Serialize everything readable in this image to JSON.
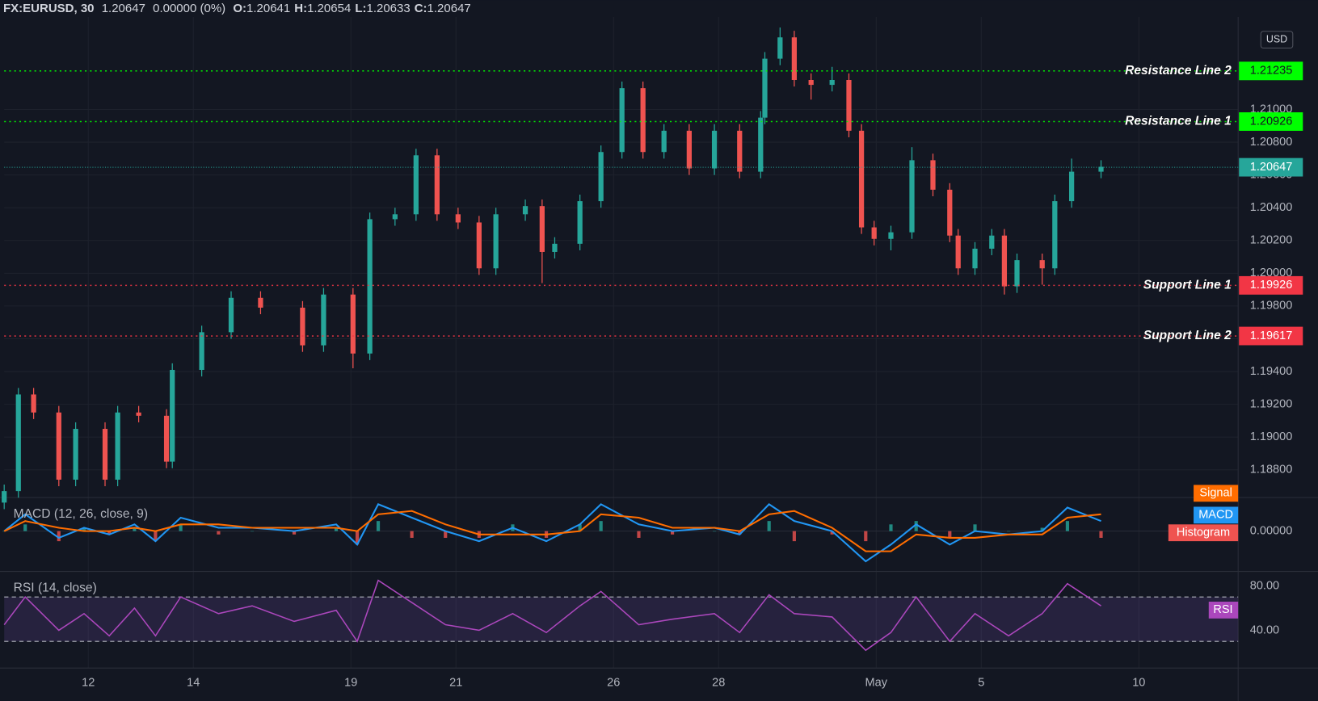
{
  "header": {
    "symbol": "FX:EURUSD, 30",
    "last": "1.20647",
    "change": "0.00000 (0%)",
    "ohlc": [
      {
        "label": "O:",
        "value": "1.20641"
      },
      {
        "label": "H:",
        "value": "1.20654"
      },
      {
        "label": "L:",
        "value": "1.20633"
      },
      {
        "label": "C:",
        "value": "1.20647"
      }
    ]
  },
  "chart_data": [
    {
      "type": "candlestick",
      "currency": "USD",
      "up_color": "#26a69a",
      "down_color": "#ef5350",
      "grid": true,
      "x": [
        -1.6,
        -1.33,
        -1.04,
        -0.56,
        -0.24,
        0.32,
        0.56,
        0.96,
        1.49,
        1.6,
        2.16,
        2.72,
        3.28,
        4.08,
        4.48,
        5.04,
        5.36,
        5.84,
        6.24,
        6.64,
        7.04,
        7.44,
        7.76,
        8.32,
        8.64,
        8.88,
        9.36,
        9.76,
        10.16,
        10.56,
        10.96,
        11.44,
        11.92,
        12.4,
        12.8,
        12.88,
        13.17,
        13.44,
        13.76,
        14.16,
        14.48,
        14.72,
        14.96,
        15.28,
        15.68,
        16.08,
        16.4,
        16.56,
        16.88,
        17.2,
        17.44,
        17.68,
        18.16,
        18.4,
        18.72,
        19.28
      ],
      "open": [
        1.186,
        1.1867,
        1.1926,
        1.1915,
        1.1874,
        1.1905,
        1.1874,
        1.1915,
        1.1913,
        1.1885,
        1.1941,
        1.1964,
        1.1985,
        1.1979,
        1.1956,
        1.1987,
        1.1951,
        1.2033,
        1.2036,
        1.2072,
        1.2036,
        1.2031,
        1.2003,
        1.2036,
        1.2041,
        1.2013,
        1.2018,
        1.2044,
        1.2074,
        1.2113,
        1.2074,
        1.2087,
        1.2064,
        1.2087,
        1.2062,
        1.2095,
        1.2131,
        1.2144,
        1.2118,
        1.2115,
        1.2118,
        1.2087,
        1.2028,
        1.2021,
        1.2025,
        1.2069,
        1.2051,
        1.2023,
        1.2003,
        1.2015,
        1.2023,
        1.1992,
        1.2008,
        1.2003,
        1.2044,
        1.2062
      ],
      "high": [
        1.1871,
        1.193,
        1.193,
        1.1919,
        1.1909,
        1.1909,
        1.1919,
        1.1919,
        1.1917,
        1.1945,
        1.1968,
        1.1989,
        1.1989,
        1.1983,
        1.1991,
        1.1991,
        1.2037,
        1.204,
        1.2076,
        1.2076,
        1.204,
        1.2035,
        1.204,
        1.2045,
        1.2045,
        1.2022,
        1.2048,
        1.2078,
        1.2117,
        1.2117,
        1.2091,
        1.2091,
        1.2091,
        1.2091,
        1.2099,
        1.2135,
        1.215,
        1.2148,
        1.2122,
        1.2126,
        1.2122,
        1.2091,
        1.2032,
        1.2029,
        1.2077,
        1.2073,
        1.2055,
        1.2027,
        1.2019,
        1.2027,
        1.2027,
        1.2012,
        1.2012,
        1.2048,
        1.207,
        1.2069
      ],
      "low": [
        1.1856,
        1.1863,
        1.1911,
        1.187,
        1.187,
        1.187,
        1.187,
        1.1909,
        1.1881,
        1.1881,
        1.1937,
        1.196,
        1.1975,
        1.1952,
        1.1952,
        1.1942,
        1.1947,
        1.2029,
        1.2032,
        1.2032,
        1.2027,
        1.1999,
        1.1999,
        1.2032,
        1.1994,
        1.2009,
        1.2014,
        1.204,
        1.207,
        1.207,
        1.207,
        1.206,
        1.206,
        1.2058,
        1.2058,
        1.2091,
        1.2127,
        1.2114,
        1.2106,
        1.2111,
        1.2083,
        1.2024,
        1.2017,
        1.2014,
        1.2021,
        1.2047,
        1.2019,
        1.1999,
        1.1999,
        1.2011,
        1.1987,
        1.1988,
        1.1993,
        1.1999,
        1.204,
        1.2058
      ],
      "close": [
        1.1867,
        1.1926,
        1.1915,
        1.1874,
        1.1905,
        1.1874,
        1.1915,
        1.1913,
        1.1885,
        1.1941,
        1.1964,
        1.1985,
        1.1979,
        1.1956,
        1.1987,
        1.1951,
        1.2033,
        1.2036,
        1.2072,
        1.2036,
        1.2031,
        1.2003,
        1.2036,
        1.2041,
        1.2013,
        1.2018,
        1.2044,
        1.2074,
        1.2113,
        1.2074,
        1.2087,
        1.2064,
        1.2087,
        1.2062,
        1.2095,
        1.2131,
        1.2144,
        1.2118,
        1.2115,
        1.2118,
        1.2087,
        1.2028,
        1.2021,
        1.2025,
        1.2069,
        1.2051,
        1.2023,
        1.2003,
        1.2015,
        1.2023,
        1.1992,
        1.2008,
        1.2003,
        1.2044,
        1.2062,
        1.2065
      ],
      "xlim": [
        -1.6,
        21.89
      ],
      "xticks": [
        {
          "value": 0,
          "label": "12"
        },
        {
          "value": 2,
          "label": "14"
        },
        {
          "value": 5,
          "label": "19"
        },
        {
          "value": 7,
          "label": "21"
        },
        {
          "value": 10,
          "label": "26"
        },
        {
          "value": 12,
          "label": "28"
        },
        {
          "value": 15,
          "label": "May"
        },
        {
          "value": 17,
          "label": "5"
        },
        {
          "value": 20,
          "label": "10"
        }
      ],
      "ylim": [
        1.18631,
        1.21513
      ],
      "yticks": [
        {
          "value": 1.188,
          "label": "1.18800"
        },
        {
          "value": 1.19,
          "label": "1.19000"
        },
        {
          "value": 1.192,
          "label": "1.19200"
        },
        {
          "value": 1.194,
          "label": "1.19400"
        },
        {
          "value": 1.196,
          "label": "1.19600"
        },
        {
          "value": 1.198,
          "label": "1.19800"
        },
        {
          "value": 1.2,
          "label": "1.20000"
        },
        {
          "value": 1.202,
          "label": "1.20200"
        },
        {
          "value": 1.204,
          "label": "1.20400"
        },
        {
          "value": 1.206,
          "label": "1.20600"
        },
        {
          "value": 1.208,
          "label": "1.20800"
        },
        {
          "value": 1.21,
          "label": "1.21000"
        }
      ],
      "levels": [
        {
          "name": "Resistance Line 2",
          "value": 1.21235,
          "color": "#00ff00"
        },
        {
          "name": "Resistance Line 1",
          "value": 1.20926,
          "color": "#00ff00"
        },
        {
          "name": "Support Line 1",
          "value": 1.19926,
          "color": "#f23645"
        },
        {
          "name": "Support Line 2",
          "value": 1.19617,
          "color": "#f23645"
        }
      ],
      "last_price": 1.20647,
      "last_color": "#26a69a"
    },
    {
      "type": "macd",
      "title": "MACD (12, 26, close, 9)",
      "x": [
        -1.6,
        -1.2,
        -0.56,
        -0.08,
        0.4,
        0.88,
        1.28,
        1.76,
        2.48,
        3.12,
        3.92,
        4.72,
        5.12,
        5.52,
        6.16,
        6.8,
        7.44,
        8.08,
        8.72,
        9.36,
        9.76,
        10.48,
        11.12,
        11.92,
        12.4,
        12.96,
        13.44,
        14.16,
        14.8,
        15.28,
        15.76,
        16.4,
        16.88,
        17.52,
        18.16,
        18.64,
        19.28
      ],
      "series": [
        {
          "name": "Histogram",
          "color": "#ef5350",
          "up_color": "#26a69a",
          "values": [
            0,
            0.0002,
            -0.0003,
            0.0001,
            -0.0001,
            0.0001,
            -0.0003,
            0.0002,
            -0.0001,
            0,
            -0.0001,
            0.0001,
            -0.0004,
            0.0003,
            -0.0002,
            -0.0002,
            -0.0002,
            0.0002,
            -0.0002,
            0.0002,
            0.0003,
            -0.0002,
            -0.0001,
            0,
            -0.0001,
            0.0003,
            -0.0003,
            -0.0001,
            -0.0003,
            0.0002,
            0.0003,
            -0.0002,
            0.0002,
            0,
            0.0001,
            0.0003,
            -0.0002
          ]
        },
        {
          "name": "MACD",
          "color": "#2196f3",
          "values": [
            0,
            0.0005,
            -0.0002,
            0.0001,
            -0.0001,
            0.0002,
            -0.0003,
            0.0004,
            0.0001,
            0.0001,
            0,
            0.0002,
            -0.0004,
            0.0008,
            0.0004,
            0,
            -0.0003,
            0.0001,
            -0.0003,
            0.0002,
            0.0008,
            0.0002,
            0,
            0.0001,
            -0.0001,
            0.0008,
            0.0003,
            0,
            -0.0009,
            -0.0004,
            0.0002,
            -0.0004,
            0,
            -0.0001,
            0,
            0.0007,
            0.0003
          ]
        },
        {
          "name": "Signal",
          "color": "#ff6d00",
          "values": [
            0,
            0.0003,
            0.0001,
            0,
            0,
            0.0001,
            0,
            0.0002,
            0.0002,
            0.0001,
            0.0001,
            0.0001,
            0,
            0.0005,
            0.0006,
            0.0002,
            -0.0001,
            -0.0001,
            -0.0001,
            0,
            0.0005,
            0.0004,
            0.0001,
            0.0001,
            0,
            0.0005,
            0.0006,
            0.0001,
            -0.0006,
            -0.0006,
            -0.0001,
            -0.0002,
            -0.0002,
            -0.0001,
            -0.0001,
            0.0004,
            0.0005
          ]
        }
      ],
      "ylim": [
        -0.0012,
        0.001
      ],
      "yticks": [
        {
          "value": 0,
          "label": "0.00000"
        }
      ]
    },
    {
      "type": "rsi",
      "title": "RSI (14, close)",
      "x": [
        -1.6,
        -1.2,
        -0.56,
        -0.08,
        0.4,
        0.88,
        1.28,
        1.76,
        2.48,
        3.12,
        3.92,
        4.72,
        5.12,
        5.52,
        6.16,
        6.8,
        7.44,
        8.08,
        8.72,
        9.36,
        9.76,
        10.48,
        11.12,
        11.92,
        12.4,
        12.96,
        13.44,
        14.16,
        14.8,
        15.28,
        15.76,
        16.4,
        16.88,
        17.52,
        18.16,
        18.64,
        19.28
      ],
      "series": [
        {
          "name": "RSI",
          "color": "#ab47bc",
          "values": [
            45,
            70,
            40,
            55,
            35,
            60,
            35,
            70,
            55,
            62,
            48,
            58,
            30,
            85,
            65,
            45,
            40,
            55,
            38,
            62,
            75,
            45,
            50,
            55,
            38,
            72,
            55,
            52,
            22,
            38,
            70,
            30,
            55,
            35,
            55,
            82,
            62
          ]
        }
      ],
      "bands": [
        30,
        70
      ],
      "band_fill": "rgba(126,87,194,0.18)",
      "ylim": [
        6,
        93
      ],
      "yticks": [
        {
          "value": 40,
          "label": "40.00"
        },
        {
          "value": 80,
          "label": "80.00"
        }
      ]
    }
  ]
}
